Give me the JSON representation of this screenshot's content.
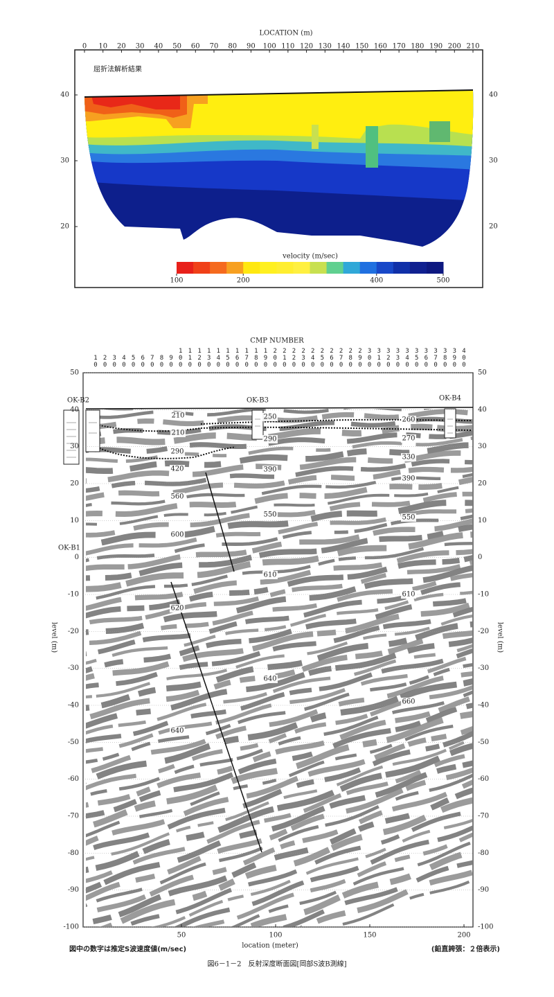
{
  "top_panel": {
    "title": "屈折法解析結果",
    "x_axis_label": "LOCATION (m)",
    "x_ticks": [
      0,
      10,
      20,
      30,
      40,
      50,
      60,
      70,
      80,
      90,
      100,
      110,
      120,
      130,
      140,
      150,
      160,
      170,
      180,
      190,
      200,
      210
    ],
    "y_ticks": [
      20,
      30,
      40
    ],
    "colorbar_label": "velocity (m/sec)",
    "colorbar_ticks": [
      100,
      200,
      400,
      500
    ]
  },
  "bottom_panel": {
    "cmp_label": "CMP NUMBER",
    "cmp_ticks": [
      10,
      20,
      30,
      40,
      50,
      60,
      70,
      80,
      90,
      100,
      110,
      120,
      130,
      140,
      150,
      160,
      170,
      180,
      190,
      200,
      210,
      220,
      230,
      240,
      250,
      260,
      270,
      280,
      290,
      300,
      310,
      320,
      330,
      340,
      350,
      360,
      370,
      380,
      390,
      400
    ],
    "y_ticks": [
      50,
      40,
      30,
      20,
      10,
      0,
      -10,
      -20,
      -30,
      -40,
      -50,
      -60,
      -70,
      -80,
      -90,
      -100
    ],
    "x_ticks": [
      50,
      100,
      150,
      200
    ],
    "x_axis_label": "location (meter)",
    "y_axis_label": "level (m)",
    "boreholes": [
      "OK-B2",
      "OK-B3",
      "OK-B4",
      "OK-B1"
    ],
    "velocity_labels": [
      210,
      250,
      260,
      210,
      270,
      290,
      290,
      330,
      420,
      390,
      390,
      560,
      550,
      550,
      600,
      610,
      610,
      620,
      640,
      660,
      640
    ]
  },
  "notes": {
    "left": "図中の数字は推定S波速度値(m/sec)",
    "right": "(鉛直誇張：２倍表示)"
  },
  "caption": "図6－1－2　反射深度断面図[岡部S波B測線]"
}
